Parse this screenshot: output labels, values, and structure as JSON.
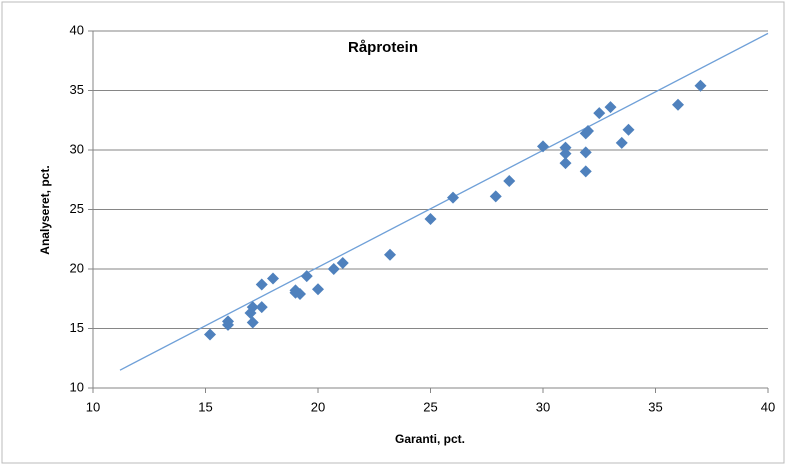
{
  "chart_data": {
    "type": "scatter",
    "title": "Råprotein",
    "x_label": "Garanti, pct.",
    "y_label": "Analyseret, pct.",
    "series": [
      {
        "color": "#4f81bd",
        "x": [
          15.2,
          16.0,
          16.0,
          17.1,
          17.0,
          17.1,
          17.5,
          17.5,
          18.0,
          19.0,
          19.0,
          19.2,
          19.5,
          20.0,
          20.7,
          21.1,
          23.2,
          25.0,
          26.0,
          27.9,
          28.5,
          30.0,
          31.0,
          31.0,
          31.0,
          31.9,
          31.9,
          31.9,
          32.0,
          32.5,
          33.0,
          33.5,
          33.8,
          36.0,
          37.0
        ],
        "values": [
          14.5,
          15.6,
          15.3,
          16.8,
          16.3,
          15.5,
          16.8,
          18.7,
          19.2,
          18.2,
          18.0,
          17.9,
          19.4,
          18.3,
          20.0,
          20.5,
          21.2,
          24.2,
          26.0,
          26.1,
          27.4,
          30.3,
          30.2,
          29.7,
          28.9,
          29.8,
          28.2,
          31.4,
          31.6,
          33.1,
          33.6,
          30.6,
          31.7,
          33.8,
          35.4
        ]
      }
    ],
    "reference_line": {
      "color": "#6fa0d8",
      "x": [
        11.2,
        40
      ],
      "values": [
        11.5,
        39.8
      ]
    },
    "xlim": [
      10,
      40
    ],
    "xticks": [
      10,
      15,
      20,
      25,
      30,
      35,
      40
    ],
    "ylim": [
      10,
      40
    ],
    "yticks": [
      10,
      15,
      20,
      25,
      30,
      35,
      40
    ],
    "grid": true
  }
}
